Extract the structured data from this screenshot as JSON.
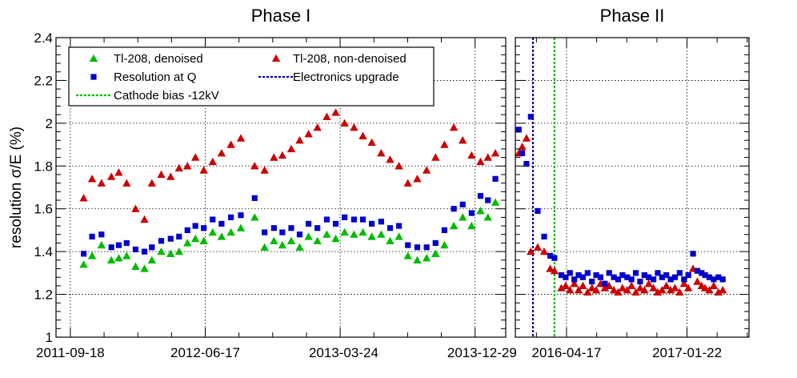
{
  "chart_data": {
    "type": "scatter",
    "ylabel": "resolution σ/E (%)",
    "ylim": [
      1.0,
      2.4
    ],
    "yticks": [
      "1",
      "1.2",
      "1.4",
      "1.6",
      "1.8",
      "2",
      "2.2",
      "2.4"
    ],
    "grid": true,
    "legend_position": "top-left",
    "legend": [
      {
        "label": "Tl-208, denoised",
        "marker": "triangle",
        "color": "#00bb00"
      },
      {
        "label": "Tl-208, non-denoised",
        "marker": "triangle",
        "color": "#cc0000"
      },
      {
        "label": "Resolution at Q",
        "marker": "square",
        "color": "#0000cc"
      },
      {
        "label": "Electronics upgrade",
        "marker": "dashed-line",
        "color": "#000099"
      },
      {
        "label": "Cathode bias -12kV",
        "marker": "dashed-line",
        "color": "#00bb00"
      }
    ],
    "panels": [
      {
        "title": "Phase I",
        "xlim": [
          "2011-08-20",
          "2014-02-15"
        ],
        "xticks": [
          "2011-09-18",
          "2012-06-17",
          "2013-03-24",
          "2013-12-29"
        ],
        "series": [
          {
            "name": "Tl-208, denoised",
            "color": "#00bb00",
            "marker": "triangle",
            "x": [
              "2011-10-15",
              "2011-11-01",
              "2011-11-20",
              "2011-12-10",
              "2011-12-25",
              "2012-01-10",
              "2012-01-28",
              "2012-02-15",
              "2012-03-01",
              "2012-03-20",
              "2012-04-08",
              "2012-04-25",
              "2012-05-12",
              "2012-05-28",
              "2012-06-14",
              "2012-07-02",
              "2012-07-20",
              "2012-08-08",
              "2012-08-28",
              "2012-09-25",
              "2012-10-15",
              "2012-11-03",
              "2012-11-20",
              "2012-12-08",
              "2012-12-25",
              "2013-01-12",
              "2013-01-30",
              "2013-02-18",
              "2013-03-08",
              "2013-03-26",
              "2013-04-14",
              "2013-05-02",
              "2013-05-20",
              "2013-06-08",
              "2013-06-26",
              "2013-07-14",
              "2013-08-01",
              "2013-08-20",
              "2013-09-08",
              "2013-09-26",
              "2013-10-14",
              "2013-11-02",
              "2013-11-20",
              "2013-12-08",
              "2013-12-26",
              "2014-01-10",
              "2014-01-25"
            ],
            "y": [
              1.34,
              1.38,
              1.43,
              1.36,
              1.37,
              1.38,
              1.33,
              1.32,
              1.36,
              1.4,
              1.39,
              1.4,
              1.44,
              1.46,
              1.45,
              1.49,
              1.47,
              1.49,
              1.51,
              1.56,
              1.42,
              1.45,
              1.43,
              1.45,
              1.42,
              1.47,
              1.45,
              1.48,
              1.46,
              1.49,
              1.48,
              1.49,
              1.47,
              1.48,
              1.45,
              1.47,
              1.38,
              1.36,
              1.37,
              1.39,
              1.43,
              1.52,
              1.56,
              1.52,
              1.59,
              1.56,
              1.63
            ]
          },
          {
            "name": "Tl-208, non-denoised",
            "color": "#cc0000",
            "marker": "triangle",
            "x": [
              "2011-10-15",
              "2011-11-01",
              "2011-11-20",
              "2011-12-10",
              "2011-12-25",
              "2012-01-10",
              "2012-01-28",
              "2012-02-15",
              "2012-03-01",
              "2012-03-20",
              "2012-04-08",
              "2012-04-25",
              "2012-05-12",
              "2012-05-28",
              "2012-06-14",
              "2012-07-02",
              "2012-07-20",
              "2012-08-08",
              "2012-08-28",
              "2012-09-25",
              "2012-10-15",
              "2012-11-03",
              "2012-11-20",
              "2012-12-08",
              "2012-12-25",
              "2013-01-12",
              "2013-01-30",
              "2013-02-18",
              "2013-03-08",
              "2013-03-26",
              "2013-04-14",
              "2013-05-02",
              "2013-05-20",
              "2013-06-08",
              "2013-06-26",
              "2013-07-14",
              "2013-08-01",
              "2013-08-20",
              "2013-09-08",
              "2013-09-26",
              "2013-10-14",
              "2013-11-02",
              "2013-11-20",
              "2013-12-08",
              "2013-12-26",
              "2014-01-10",
              "2014-01-25"
            ],
            "y": [
              1.65,
              1.74,
              1.72,
              1.75,
              1.77,
              1.72,
              1.6,
              1.55,
              1.72,
              1.76,
              1.75,
              1.79,
              1.8,
              1.84,
              1.78,
              1.82,
              1.86,
              1.9,
              1.93,
              1.8,
              1.78,
              1.84,
              1.85,
              1.88,
              1.92,
              1.95,
              1.98,
              2.03,
              2.05,
              2.0,
              1.98,
              1.94,
              1.91,
              1.86,
              1.83,
              1.8,
              1.72,
              1.74,
              1.78,
              1.84,
              1.9,
              1.98,
              1.92,
              1.85,
              1.82,
              1.84,
              1.86
            ]
          },
          {
            "name": "Resolution at Q",
            "color": "#0000cc",
            "marker": "square",
            "x": [
              "2011-10-15",
              "2011-11-01",
              "2011-11-20",
              "2011-12-10",
              "2011-12-25",
              "2012-01-10",
              "2012-01-28",
              "2012-02-15",
              "2012-03-01",
              "2012-03-20",
              "2012-04-08",
              "2012-04-25",
              "2012-05-12",
              "2012-05-28",
              "2012-06-14",
              "2012-07-02",
              "2012-07-20",
              "2012-08-08",
              "2012-08-28",
              "2012-09-25",
              "2012-10-15",
              "2012-11-03",
              "2012-11-20",
              "2012-12-08",
              "2012-12-25",
              "2013-01-12",
              "2013-01-30",
              "2013-02-18",
              "2013-03-08",
              "2013-03-26",
              "2013-04-14",
              "2013-05-02",
              "2013-05-20",
              "2013-06-08",
              "2013-06-26",
              "2013-07-14",
              "2013-08-01",
              "2013-08-20",
              "2013-09-08",
              "2013-09-26",
              "2013-10-14",
              "2013-11-02",
              "2013-11-20",
              "2013-12-08",
              "2013-12-26",
              "2014-01-10",
              "2014-01-25"
            ],
            "y": [
              1.39,
              1.47,
              1.48,
              1.42,
              1.43,
              1.44,
              1.41,
              1.4,
              1.42,
              1.45,
              1.46,
              1.47,
              1.5,
              1.52,
              1.51,
              1.55,
              1.53,
              1.56,
              1.57,
              1.65,
              1.49,
              1.51,
              1.49,
              1.51,
              1.48,
              1.53,
              1.51,
              1.55,
              1.53,
              1.56,
              1.55,
              1.55,
              1.53,
              1.54,
              1.51,
              1.52,
              1.43,
              1.42,
              1.42,
              1.44,
              1.5,
              1.6,
              1.62,
              1.58,
              1.66,
              1.64,
              1.74
            ]
          }
        ]
      },
      {
        "title": "Phase II",
        "xlim": [
          "2015-12-20",
          "2017-06-15"
        ],
        "xticks": [
          "2016-04-17",
          "2017-01-22"
        ],
        "vlines": [
          {
            "name": "Electronics upgrade",
            "x": "2016-01-30",
            "color": "#000099"
          },
          {
            "name": "Cathode bias -12kV",
            "x": "2016-03-20",
            "color": "#00bb00"
          }
        ],
        "series": [
          {
            "name": "Tl-208, non-denoised",
            "color": "#cc0000",
            "marker": "triangle",
            "x": [
              "2015-12-28",
              "2016-01-05",
              "2016-01-15",
              "2016-01-25",
              "2016-02-10",
              "2016-02-25",
              "2016-03-10",
              "2016-03-20",
              "2016-04-05",
              "2016-04-15",
              "2016-04-25",
              "2016-05-05",
              "2016-05-15",
              "2016-05-25",
              "2016-06-05",
              "2016-06-15",
              "2016-06-25",
              "2016-07-05",
              "2016-07-15",
              "2016-07-25",
              "2016-08-05",
              "2016-08-15",
              "2016-08-25",
              "2016-09-05",
              "2016-09-15",
              "2016-09-25",
              "2016-10-05",
              "2016-10-15",
              "2016-10-25",
              "2016-11-05",
              "2016-11-15",
              "2016-11-25",
              "2016-12-05",
              "2016-12-15",
              "2016-12-25",
              "2017-01-05",
              "2017-01-15",
              "2017-01-25",
              "2017-02-05",
              "2017-02-15",
              "2017-02-25",
              "2017-03-05",
              "2017-03-15",
              "2017-03-25",
              "2017-04-05",
              "2017-04-15"
            ],
            "y": [
              1.86,
              1.89,
              1.93,
              1.4,
              1.42,
              1.4,
              1.32,
              1.31,
              1.23,
              1.24,
              1.22,
              1.25,
              1.22,
              1.24,
              1.21,
              1.23,
              1.22,
              1.25,
              1.23,
              1.24,
              1.22,
              1.21,
              1.23,
              1.22,
              1.24,
              1.21,
              1.23,
              1.22,
              1.25,
              1.23,
              1.21,
              1.22,
              1.24,
              1.22,
              1.23,
              1.21,
              1.25,
              1.23,
              1.32,
              1.26,
              1.24,
              1.23,
              1.22,
              1.24,
              1.21,
              1.22
            ]
          },
          {
            "name": "Resolution at Q",
            "color": "#0000cc",
            "marker": "square",
            "x": [
              "2015-12-28",
              "2016-01-05",
              "2016-01-15",
              "2016-01-25",
              "2016-02-10",
              "2016-02-25",
              "2016-03-10",
              "2016-03-20",
              "2016-04-05",
              "2016-04-15",
              "2016-04-25",
              "2016-05-05",
              "2016-05-15",
              "2016-05-25",
              "2016-06-05",
              "2016-06-15",
              "2016-06-25",
              "2016-07-05",
              "2016-07-15",
              "2016-07-25",
              "2016-08-05",
              "2016-08-15",
              "2016-08-25",
              "2016-09-05",
              "2016-09-15",
              "2016-09-25",
              "2016-10-05",
              "2016-10-15",
              "2016-10-25",
              "2016-11-05",
              "2016-11-15",
              "2016-11-25",
              "2016-12-05",
              "2016-12-15",
              "2016-12-25",
              "2017-01-05",
              "2017-01-15",
              "2017-01-25",
              "2017-02-05",
              "2017-02-15",
              "2017-02-25",
              "2017-03-05",
              "2017-03-15",
              "2017-03-25",
              "2017-04-05",
              "2017-04-15"
            ],
            "y": [
              1.97,
              1.86,
              1.81,
              2.03,
              1.59,
              1.47,
              1.38,
              1.37,
              1.29,
              1.28,
              1.3,
              1.27,
              1.29,
              1.28,
              1.3,
              1.26,
              1.29,
              1.28,
              1.25,
              1.3,
              1.28,
              1.27,
              1.29,
              1.28,
              1.27,
              1.3,
              1.26,
              1.29,
              1.28,
              1.27,
              1.3,
              1.28,
              1.29,
              1.27,
              1.28,
              1.3,
              1.27,
              1.29,
              1.39,
              1.31,
              1.3,
              1.29,
              1.28,
              1.27,
              1.28,
              1.27
            ]
          }
        ]
      }
    ]
  }
}
